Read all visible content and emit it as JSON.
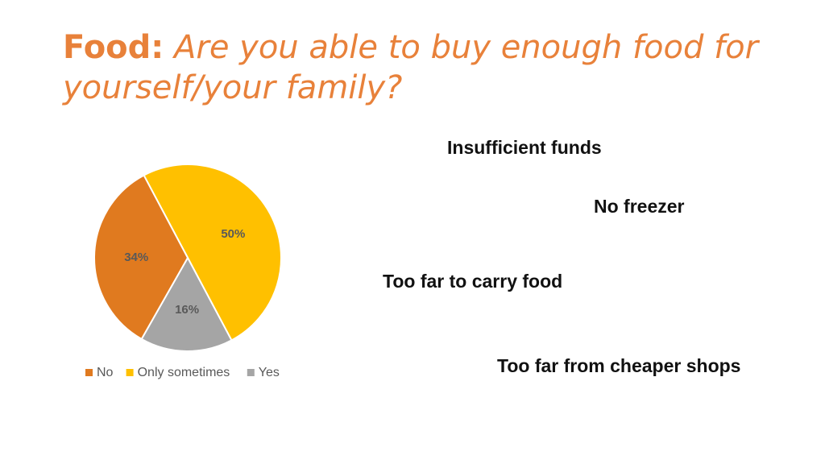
{
  "title": {
    "bold": "Food:",
    "italic": "Are you able to buy enough food for yourself/your family?"
  },
  "chart_data": {
    "type": "pie",
    "slices": [
      {
        "label": "No",
        "value": 34,
        "display": "34%",
        "color": "#e07a1f"
      },
      {
        "label": "Only sometimes",
        "value": 50,
        "display": "50%",
        "color": "#ffc000"
      },
      {
        "label": "Yes",
        "value": 16,
        "display": "16%",
        "color": "#a5a5a5"
      }
    ],
    "legend": {
      "placement": "bottom",
      "entries": [
        "No",
        "Only sometimes",
        "Yes"
      ]
    },
    "label_color": "#595959"
  },
  "reasons": [
    "Insufficient funds",
    "No freezer",
    "Too far to carry food",
    "Too far from cheaper shops"
  ]
}
